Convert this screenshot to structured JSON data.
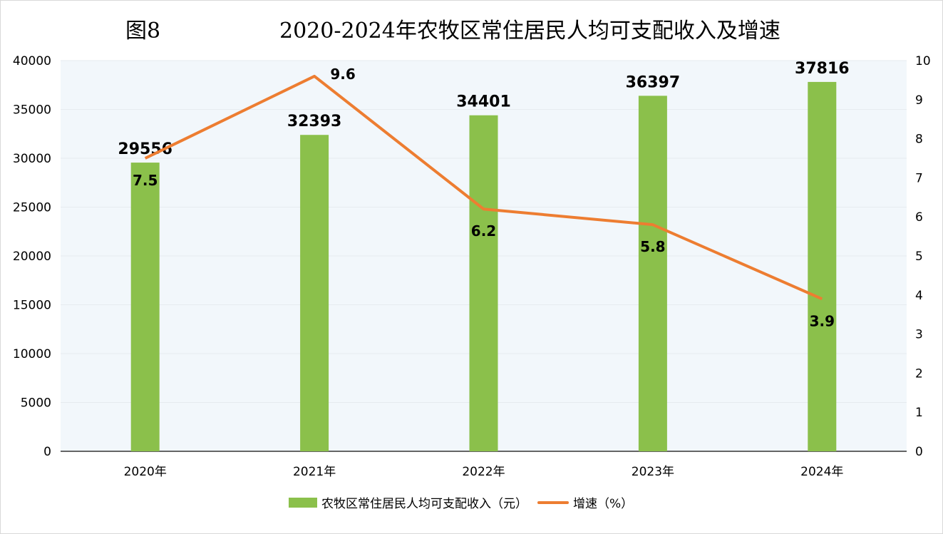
{
  "figure_label": "图8",
  "chart_data": {
    "type": "bar+line",
    "title": "2020-2024年农牧区常住居民人均可支配收入及增速",
    "categories": [
      "2020年",
      "2021年",
      "2022年",
      "2023年",
      "2024年"
    ],
    "series": [
      {
        "name": "农牧区常住居民人均可支配收入（元）",
        "type": "bar",
        "axis": "left",
        "color": "#8bc04b",
        "values": [
          29556,
          32393,
          34401,
          36397,
          37816
        ]
      },
      {
        "name": "增速（%）",
        "type": "line",
        "axis": "right",
        "color": "#ed7d31",
        "values": [
          7.5,
          9.6,
          6.2,
          5.8,
          3.9
        ]
      }
    ],
    "y_left": {
      "range": [
        0,
        40000
      ],
      "ticks": [
        "0",
        "5000",
        "10000",
        "15000",
        "20000",
        "25000",
        "30000",
        "35000",
        "40000"
      ]
    },
    "y_right": {
      "range": [
        0,
        10
      ],
      "ticks": [
        "0",
        "1",
        "2",
        "3",
        "4",
        "5",
        "6",
        "7",
        "8",
        "9",
        "10"
      ]
    },
    "grid": true,
    "legend": "bottom",
    "plot_background": "#f2f7fb"
  }
}
